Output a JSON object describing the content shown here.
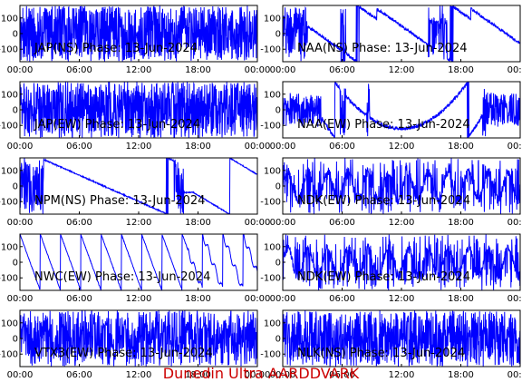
{
  "footer": "Dunedin Ultra AARDDVARK",
  "colors": {
    "trace": "#0000ff",
    "frame": "#000000",
    "footer": "#cc0000"
  },
  "chart_data": [
    {
      "type": "line",
      "title": "JAP(NS) Phase: 13-Jun-2024",
      "xlim": [
        0,
        24
      ],
      "ylim": [
        -180,
        180
      ],
      "x_ticks": [
        "00:00",
        "06:00",
        "12:00",
        "18:00",
        "00:00"
      ],
      "y_ticks": [
        "100",
        "0",
        "-100"
      ],
      "pattern": "noise",
      "density": 1.0
    },
    {
      "type": "line",
      "title": "NAA(NS) Phase: 13-Jun-2024",
      "xlim": [
        0,
        24
      ],
      "ylim": [
        -180,
        180
      ],
      "x_ticks": [
        "00:00",
        "06:00",
        "12:00",
        "18:00",
        "00:00"
      ],
      "y_ticks": [
        "100",
        "0",
        "-100"
      ],
      "pattern": "naa_ns"
    },
    {
      "type": "line",
      "title": "JAP(EW) Phase: 13-Jun-2024",
      "xlim": [
        0,
        24
      ],
      "ylim": [
        -180,
        180
      ],
      "x_ticks": [
        "00:00",
        "06:00",
        "12:00",
        "18:00",
        "00:00"
      ],
      "y_ticks": [
        "100",
        "0",
        "-100"
      ],
      "pattern": "noise",
      "density": 1.0
    },
    {
      "type": "line",
      "title": "NAA(EW) Phase: 13-Jun-2024",
      "xlim": [
        0,
        24
      ],
      "ylim": [
        -180,
        180
      ],
      "x_ticks": [
        "00:00",
        "06:00",
        "12:00",
        "18:00",
        "00:00"
      ],
      "y_ticks": [
        "100",
        "0",
        "-100"
      ],
      "pattern": "naa_ew"
    },
    {
      "type": "line",
      "title": "NPM(NS) Phase: 13-Jun-2024",
      "xlim": [
        0,
        24
      ],
      "ylim": [
        -180,
        180
      ],
      "x_ticks": [
        "00:00",
        "06:00",
        "12:00",
        "18:00",
        "00:00"
      ],
      "y_ticks": [
        "100",
        "0",
        "-100"
      ],
      "pattern": "npm"
    },
    {
      "type": "line",
      "title": "NDK(EW) Phase: 13-Jun-2024",
      "xlim": [
        0,
        24
      ],
      "ylim": [
        -180,
        180
      ],
      "x_ticks": [
        "00:00",
        "06:00",
        "12:00",
        "18:00",
        "00:00"
      ],
      "y_ticks": [
        "100",
        "0",
        "-100"
      ],
      "pattern": "noise",
      "density": 0.35
    },
    {
      "type": "line",
      "title": "NWC(EW) Phase: 13-Jun-2024",
      "xlim": [
        0,
        24
      ],
      "ylim": [
        -180,
        180
      ],
      "x_ticks": [
        "00:00",
        "06:00",
        "12:00",
        "18:00",
        "00:00"
      ],
      "y_ticks": [
        "100",
        "0",
        "-100"
      ],
      "pattern": "sawtooth"
    },
    {
      "type": "line",
      "title": "NDK(EW) Phase: 13-Jun-2024",
      "xlim": [
        0,
        24
      ],
      "ylim": [
        -180,
        180
      ],
      "x_ticks": [
        "00:00",
        "06:00",
        "12:00",
        "18:00",
        "00:00"
      ],
      "y_ticks": [
        "100",
        "0",
        "-100"
      ],
      "pattern": "noise",
      "density": 0.35
    },
    {
      "type": "line",
      "title": "VTX3(EW) Phase: 13-Jun-2024",
      "xlim": [
        0,
        24
      ],
      "ylim": [
        -180,
        180
      ],
      "x_ticks": [
        "00:00",
        "06:00",
        "12:00",
        "18:00",
        "00:00"
      ],
      "y_ticks": [
        "100",
        "0",
        "-100"
      ],
      "pattern": "noise",
      "density": 0.75
    },
    {
      "type": "line",
      "title": "NLK(NS) Phase: 13-Jun-2024",
      "xlim": [
        0,
        24
      ],
      "ylim": [
        -180,
        180
      ],
      "x_ticks": [
        "00:00",
        "06:00",
        "12:00",
        "18:00",
        "00:00"
      ],
      "y_ticks": [
        "100",
        "0",
        "-100"
      ],
      "pattern": "noise",
      "density": 0.95
    }
  ]
}
